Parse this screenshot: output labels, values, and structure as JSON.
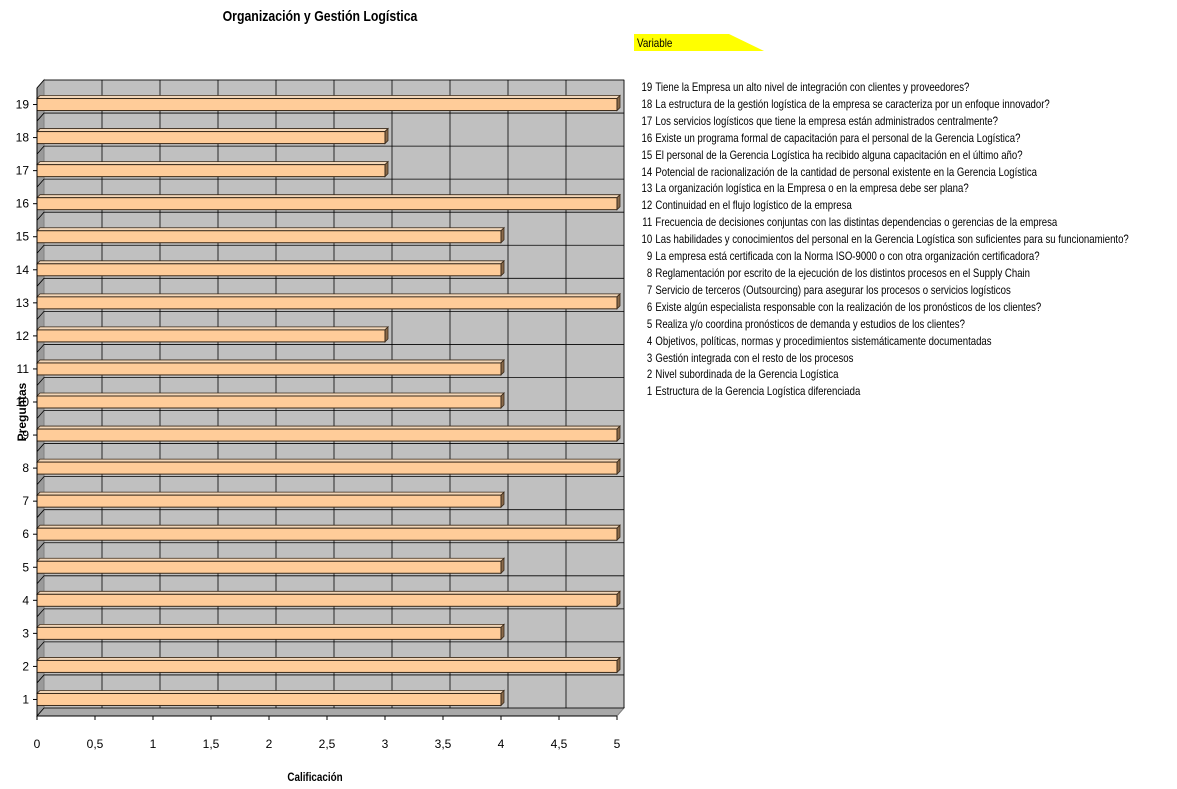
{
  "chart_data": {
    "type": "bar",
    "orientation": "horizontal",
    "title": "Organización y Gestión Logística",
    "xlabel": "Calificación",
    "ylabel": "Preguntas",
    "xlim": [
      0,
      5
    ],
    "x_ticks": [
      "0",
      "0,5",
      "1",
      "1,5",
      "2",
      "2,5",
      "3",
      "3,5",
      "4",
      "4,5",
      "5"
    ],
    "categories": [
      "1",
      "2",
      "3",
      "4",
      "5",
      "6",
      "7",
      "8",
      "9",
      "10",
      "11",
      "12",
      "13",
      "14",
      "15",
      "16",
      "17",
      "18",
      "19"
    ],
    "values": [
      4,
      5,
      4,
      5,
      4,
      5,
      4,
      5,
      5,
      4,
      4,
      3,
      5,
      4,
      4,
      5,
      3,
      3,
      5
    ],
    "grid": true,
    "bar_color": "#FFCC99",
    "plot_background": "#C0C0C0",
    "legend_title": "Variable",
    "legend_title_background": "#FFFF00",
    "legend": [
      {
        "num": "19",
        "text": "Tiene la Empresa un alto nivel de integración con clientes y proveedores?"
      },
      {
        "num": "18",
        "text": "La estructura de la gestión logística de la empresa se caracteriza por un enfoque innovador?"
      },
      {
        "num": "17",
        "text": "Los servicios logísticos que tiene la empresa están administrados centralmente?"
      },
      {
        "num": "16",
        "text": "Existe un programa formal de capacitación para el personal de la Gerencia Logística?"
      },
      {
        "num": "15",
        "text": "El personal de la Gerencia Logística ha recibido alguna capacitación en el último año?"
      },
      {
        "num": "14",
        "text": "Potencial de racionalización de la cantidad de personal existente en la Gerencia Logística"
      },
      {
        "num": "13",
        "text": "La organización logística en la Empresa o en la empresa debe ser plana?"
      },
      {
        "num": "12",
        "text": "Continuidad en el flujo logístico de la empresa"
      },
      {
        "num": "11",
        "text": "Frecuencia de decisiones conjuntas con las distintas dependencias o gerencias de la empresa"
      },
      {
        "num": "10",
        "text": "Las habilidades y conocimientos del personal en la Gerencia Logística son suficientes para su funcionamiento?"
      },
      {
        "num": "9",
        "text": "La empresa está certificada con la Norma ISO-9000 o con otra organización certificadora?"
      },
      {
        "num": "8",
        "text": "Reglamentación por escrito de la ejecución de los distintos procesos en el Supply Chain"
      },
      {
        "num": "7",
        "text": "Servicio de terceros (Outsourcing) para asegurar los procesos o servicios logísticos"
      },
      {
        "num": "6",
        "text": "Existe algún especialista responsable con la realización de los pronósticos de los clientes?"
      },
      {
        "num": "5",
        "text": "Realiza y/o coordina pronósticos de demanda y estudios de los clientes?"
      },
      {
        "num": "4",
        "text": "Objetivos, políticas, normas y procedimientos sistemáticamente documentadas"
      },
      {
        "num": "3",
        "text": "Gestión integrada con el resto de los procesos"
      },
      {
        "num": "2",
        "text": "Nivel subordinada de la Gerencia Logística"
      },
      {
        "num": "1",
        "text": "Estructura de la Gerencia Logística diferenciada"
      }
    ]
  }
}
